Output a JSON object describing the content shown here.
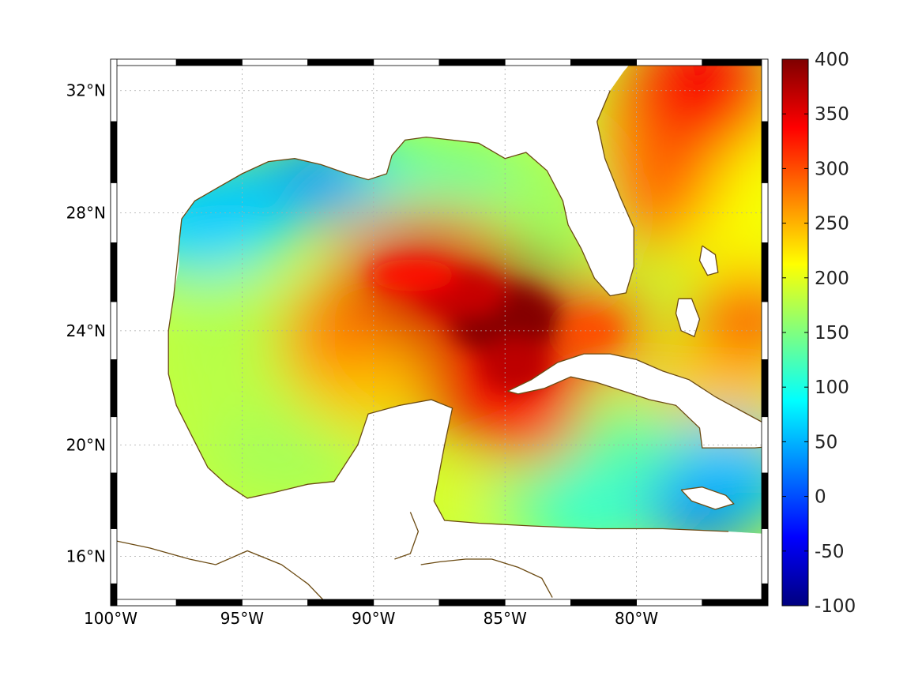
{
  "map": {
    "projection": "mercator",
    "extent": {
      "lon_min": -100,
      "lon_max": -75,
      "lat_min": 14.2,
      "lat_max": 33
    },
    "lon_ticks": [
      {
        "value": -100,
        "label": "100°W"
      },
      {
        "value": -95,
        "label": "95°W"
      },
      {
        "value": -90,
        "label": "90°W"
      },
      {
        "value": -85,
        "label": "85°W"
      },
      {
        "value": -80,
        "label": "80°W"
      }
    ],
    "lat_ticks": [
      {
        "value": 32,
        "label": "32°N"
      },
      {
        "value": 28,
        "label": "28°N"
      },
      {
        "value": 24,
        "label": "24°N"
      },
      {
        "value": 20,
        "label": "20°N"
      },
      {
        "value": 16,
        "label": "16°N"
      }
    ],
    "frame_style": "alternating black/white border",
    "grid": "dotted",
    "coastline_color": "#6b4a12",
    "land_color": "#ffffff",
    "field_regions": [
      {
        "name": "loop-current-core",
        "lon": -85.0,
        "lat": 24.5,
        "value": 395
      },
      {
        "name": "central-gulf-west",
        "lon": -88.0,
        "lat": 25.5,
        "value": 360
      },
      {
        "name": "yucatan-channel",
        "lon": -85.2,
        "lat": 22.0,
        "value": 350
      },
      {
        "name": "nw-caribbean",
        "lon": -84.0,
        "lat": 21.0,
        "value": 320
      },
      {
        "name": "florida-straits",
        "lon": -81.5,
        "lat": 24.0,
        "value": 300
      },
      {
        "name": "western-gulf-eddy",
        "lon": -91.5,
        "lat": 24.0,
        "value": 280
      },
      {
        "name": "bahamas-east",
        "lon": -75.8,
        "lat": 24.5,
        "value": 300
      },
      {
        "name": "gulf-stream-north",
        "lon": -77.5,
        "lat": 32.0,
        "value": 340
      },
      {
        "name": "gulf-stream-mid",
        "lon": -78.8,
        "lat": 29.0,
        "value": 290
      },
      {
        "name": "north-gulf-shelf",
        "lon": -92.0,
        "lat": 29.2,
        "value": 40
      },
      {
        "name": "texas-shelf",
        "lon": -96.5,
        "lat": 28.0,
        "value": 60
      },
      {
        "name": "west-gulf",
        "lon": -96.0,
        "lat": 24.0,
        "value": 175
      },
      {
        "name": "bay-of-campeche",
        "lon": -94.0,
        "lat": 20.0,
        "value": 170
      },
      {
        "name": "jamaica-south",
        "lon": -77.5,
        "lat": 17.8,
        "value": 20
      },
      {
        "name": "caribbean-east",
        "lon": -76.5,
        "lat": 19.5,
        "value": 60
      },
      {
        "name": "south-caribbean",
        "lon": -82.0,
        "lat": 17.5,
        "value": 110
      }
    ]
  },
  "colorbar": {
    "min": -100,
    "max": 400,
    "colormap": "jet",
    "ticks": [
      {
        "value": 400,
        "label": "400"
      },
      {
        "value": 350,
        "label": "350"
      },
      {
        "value": 300,
        "label": "300"
      },
      {
        "value": 250,
        "label": "250"
      },
      {
        "value": 200,
        "label": "200"
      },
      {
        "value": 150,
        "label": "150"
      },
      {
        "value": 100,
        "label": "100"
      },
      {
        "value": 50,
        "label": "50"
      },
      {
        "value": 0,
        "label": "0"
      },
      {
        "value": -50,
        "label": "-50"
      },
      {
        "value": -100,
        "label": "-100"
      }
    ]
  }
}
